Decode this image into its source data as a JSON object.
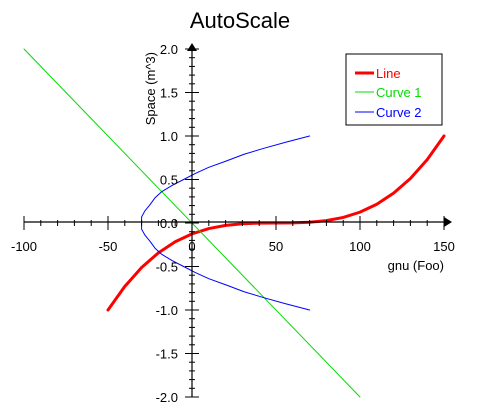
{
  "chart_data": {
    "type": "line",
    "title": "AutoScale",
    "xlabel": "gnu (Foo)",
    "ylabel": "Space (m^3)",
    "xlim": [
      -100,
      150
    ],
    "ylim": [
      -2.0,
      2.0
    ],
    "x_ticks": [
      -100,
      -50,
      0,
      50,
      100,
      150
    ],
    "x_tick_labels": [
      "-100",
      "-50",
      "0",
      "50",
      "100",
      "150"
    ],
    "y_ticks": [
      -2.0,
      -1.5,
      -1.0,
      -0.5,
      0.0,
      0.5,
      1.0,
      1.5,
      2.0
    ],
    "y_tick_labels": [
      "-2.0",
      "-1.5",
      "-1.0",
      "-0.5",
      "0.0",
      "0.5",
      "1.0",
      "1.5",
      "2.0"
    ],
    "legend_position": "top-right",
    "grid": false,
    "series": [
      {
        "name": "Line",
        "color": "#ff0000",
        "x": [
          -50,
          -40,
          -30,
          -20,
          -10,
          0,
          10,
          20,
          30,
          40,
          50,
          60,
          70,
          80,
          90,
          100,
          110,
          120,
          130,
          140,
          150
        ],
        "y": [
          -1.0,
          -0.729,
          -0.512,
          -0.343,
          -0.216,
          -0.125,
          -0.064,
          -0.027,
          -0.008,
          -0.001,
          0.0,
          0.001,
          0.008,
          0.027,
          0.064,
          0.125,
          0.216,
          0.343,
          0.512,
          0.729,
          1.0
        ]
      },
      {
        "name": "Curve 1",
        "color": "#00dd00",
        "x": [
          -100,
          100
        ],
        "y": [
          2.0,
          -2.0
        ]
      },
      {
        "name": "Curve 2",
        "color": "#0000ff",
        "x": [
          70,
          56,
          43,
          31,
          20,
          10,
          2,
          -5,
          -12,
          -18,
          -22,
          -25,
          -28,
          -30,
          -30,
          -30,
          -28,
          -25,
          -22,
          -18,
          -12,
          -5,
          2,
          10,
          20,
          31,
          43,
          56,
          70
        ],
        "y": [
          1.0,
          0.93,
          0.86,
          0.79,
          0.71,
          0.64,
          0.57,
          0.5,
          0.43,
          0.36,
          0.29,
          0.21,
          0.14,
          0.07,
          0.0,
          -0.07,
          -0.14,
          -0.21,
          -0.29,
          -0.36,
          -0.43,
          -0.5,
          -0.57,
          -0.64,
          -0.71,
          -0.79,
          -0.86,
          -0.93,
          -1.0
        ]
      }
    ]
  }
}
